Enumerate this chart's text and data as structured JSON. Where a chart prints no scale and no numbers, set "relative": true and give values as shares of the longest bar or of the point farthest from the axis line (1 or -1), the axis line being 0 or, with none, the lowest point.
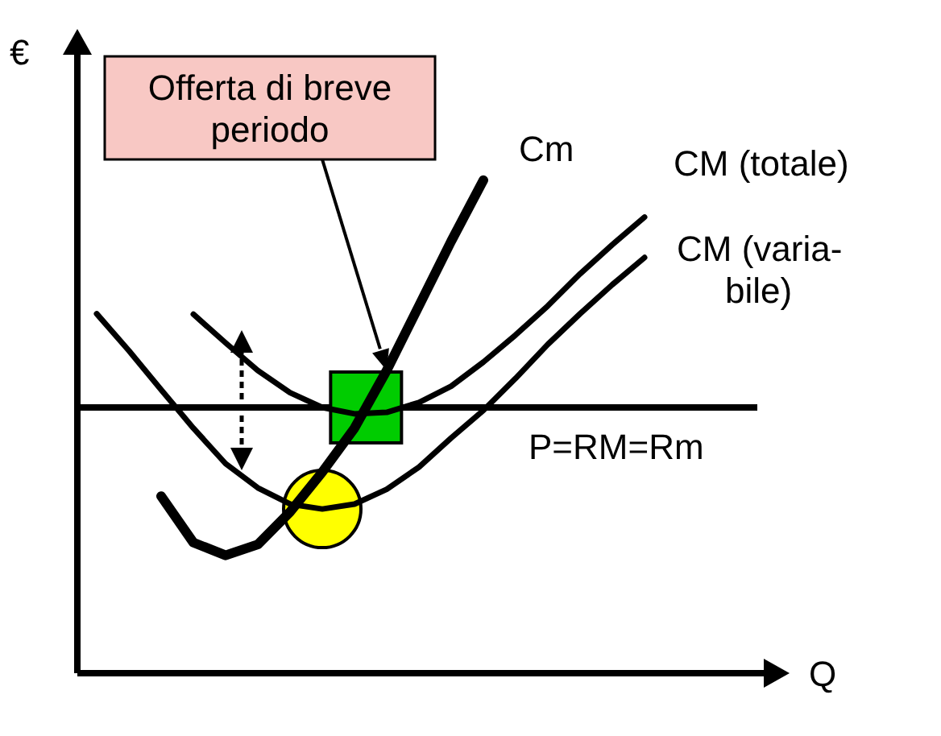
{
  "chart_data": {
    "type": "line",
    "relative": true,
    "xlabel": "Q",
    "ylabel": "€",
    "categories": [
      null,
      null,
      null,
      null,
      null,
      null,
      null,
      null,
      null,
      null,
      null,
      null,
      null,
      null,
      null,
      null,
      null,
      null,
      null,
      null,
      null
    ],
    "series": [
      {
        "name": "Cm",
        "color": "#000000",
        "values": [
          null,
          null,
          0.359,
          0.265,
          0.239,
          0.261,
          0.327,
          0.408,
          0.497,
          0.614,
          0.745,
          0.876,
          1.0,
          null,
          null,
          null,
          null,
          null,
          null,
          null,
          null
        ]
      },
      {
        "name": "CM (totale)",
        "color": "#000000",
        "values": [
          null,
          null,
          null,
          0.728,
          0.67,
          0.614,
          0.569,
          0.539,
          0.526,
          0.529,
          0.549,
          0.582,
          0.631,
          0.686,
          0.745,
          0.81,
          0.869,
          0.925,
          null,
          null,
          null
        ]
      },
      {
        "name": "CM (varia-bile)",
        "color": "#000000",
        "values": [
          0.729,
          0.654,
          0.575,
          0.497,
          0.425,
          0.376,
          0.343,
          0.333,
          0.343,
          0.373,
          0.418,
          0.477,
          0.533,
          0.598,
          0.667,
          0.729,
          0.788,
          0.843,
          null,
          null,
          null
        ]
      }
    ],
    "ref_lines": [
      {
        "axis": "y",
        "value": 0.539,
        "label": "P=RM=Rm"
      }
    ],
    "annotations": [
      "Offerta di breve periodo"
    ]
  }
}
